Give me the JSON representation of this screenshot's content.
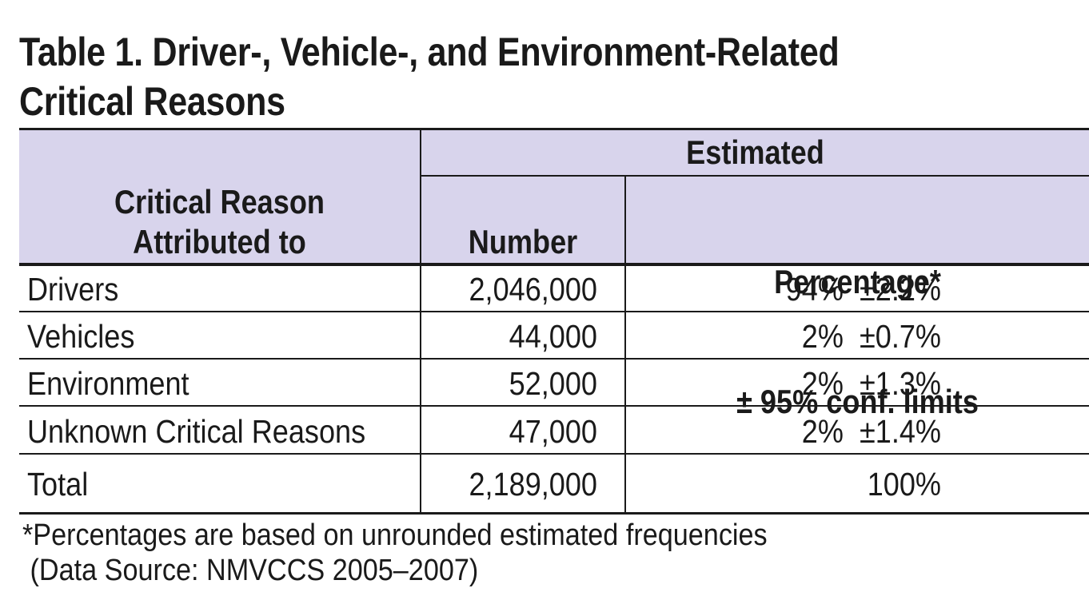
{
  "title": {
    "line1": "Table 1. Driver-, Vehicle-, and Environment-Related",
    "line2": "Critical Reasons"
  },
  "table": {
    "header": {
      "group": "Estimated",
      "critical_reason_line1": "Critical Reason",
      "critical_reason_line2": "Attributed to",
      "number": "Number",
      "percentage_line1": "Percentage*",
      "percentage_line2": "± 95% conf. limits"
    },
    "rows": [
      {
        "reason": "Drivers",
        "number": "2,046,000",
        "percentage": "94%  ±2.2%"
      },
      {
        "reason": "Vehicles",
        "number": "44,000",
        "percentage": "2%  ±0.7%"
      },
      {
        "reason": "Environment",
        "number": "52,000",
        "percentage": "2%  ±1.3%"
      },
      {
        "reason": "Unknown Critical Reasons",
        "number": "47,000",
        "percentage": "2%  ±1.4%"
      }
    ],
    "total": {
      "reason": "Total",
      "number": "2,189,000",
      "percentage": "100%"
    }
  },
  "footnote": {
    "line1": "*Percentages are based on unrounded estimated frequencies",
    "line2": " (Data Source: NMVCCS 2005–2007)"
  },
  "colors": {
    "header_background": "#d8d4ec",
    "rule": "#1a1a1a"
  }
}
